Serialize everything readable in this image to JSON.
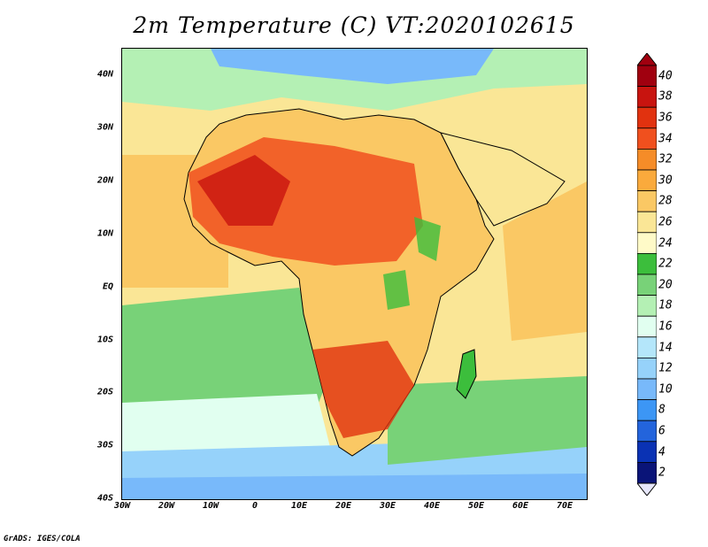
{
  "title": "2m Temperature (C) VT:2020102615",
  "credit": "GrADS: IGES/COLA",
  "lat_labels": [
    "40N",
    "30N",
    "20N",
    "10N",
    "EQ",
    "10S",
    "20S",
    "30S",
    "40S"
  ],
  "lon_labels": [
    "30W",
    "20W",
    "10W",
    "0",
    "10E",
    "20E",
    "30E",
    "40E",
    "50E",
    "60E",
    "70E"
  ],
  "colorbar": {
    "labels": [
      "40",
      "38",
      "36",
      "34",
      "32",
      "30",
      "28",
      "26",
      "24",
      "22",
      "20",
      "18",
      "16",
      "14",
      "12",
      "10",
      "8",
      "6",
      "4",
      "2"
    ],
    "colors": [
      "#a0000f",
      "#c8140f",
      "#e1320f",
      "#f0501e",
      "#f58c28",
      "#faaa3c",
      "#fac864",
      "#fae696",
      "#fffac8",
      "#3cbe3c",
      "#78d278",
      "#b4f0b4",
      "#e1fff0",
      "#b4e6fa",
      "#96d2fa",
      "#78b9fa",
      "#3c96f5",
      "#2364dc",
      "#0a32b4",
      "#0a1478"
    ],
    "top_color": "#a0000f",
    "bottom_color": "#e6e6fa"
  }
}
